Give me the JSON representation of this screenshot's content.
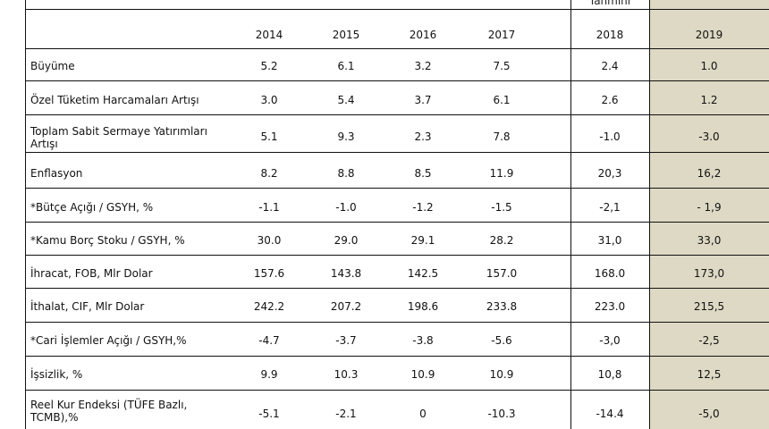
{
  "header": {
    "top_note": "Tahmini",
    "years": [
      "2014",
      "2015",
      "2016",
      "2017",
      "2018",
      "2019"
    ]
  },
  "rows": [
    {
      "label": "Büyüme",
      "values": [
        "5.2",
        "6.1",
        "3.2",
        "7.5",
        "2.4",
        "1.0"
      ]
    },
    {
      "label": "Özel Tüketim Harcamaları Artışı",
      "values": [
        "3.0",
        "5.4",
        "3.7",
        "6.1",
        "2.6",
        "1.2"
      ]
    },
    {
      "label": "Toplam Sabit Sermaye Yatırımları Artışı",
      "values": [
        "5.1",
        "9.3",
        "2.3",
        "7.8",
        "-1.0",
        "-3.0"
      ]
    },
    {
      "label": "Enflasyon",
      "values": [
        "8.2",
        "8.8",
        "8.5",
        "11.9",
        "20,3",
        "16,2"
      ]
    },
    {
      "label": "*Bütçe Açığı / GSYH, %",
      "values": [
        "-1.1",
        "-1.0",
        "-1.2",
        "-1.5",
        "-2,1",
        "- 1,9"
      ]
    },
    {
      "label": "*Kamu Borç Stoku / GSYH, %",
      "values": [
        "30.0",
        "29.0",
        "29.1",
        "28.2",
        "31,0",
        "33,0"
      ]
    },
    {
      "label": "İhracat, FOB, Mlr Dolar",
      "values": [
        "157.6",
        "143.8",
        "142.5",
        "157.0",
        "168.0",
        "173,0"
      ]
    },
    {
      "label": "İthalat, CIF, Mlr Dolar",
      "values": [
        "242.2",
        "207.2",
        "198.6",
        "233.8",
        "223.0",
        "215,5"
      ]
    },
    {
      "label": "*Cari İşlemler Açığı / GSYH,%",
      "values": [
        "-4.7",
        "-3.7",
        "-3.8",
        "-5.6",
        "-3,0",
        "-2,5"
      ]
    },
    {
      "label": "İşsizlik, %",
      "values": [
        "9.9",
        "10.3",
        "10.9",
        "10.9",
        "10,8",
        "12,5"
      ]
    },
    {
      "label": "Reel Kur Endeksi (TÜFE Bazlı, TCMB),%",
      "values": [
        "-5.1",
        "-2.1",
        "0",
        "-10.3",
        "-14.4",
        "-5,0"
      ]
    }
  ]
}
